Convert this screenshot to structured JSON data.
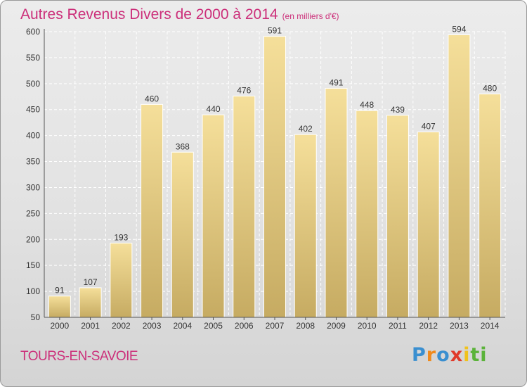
{
  "title": "Autres Revenus Divers de 2000 à 2014",
  "subtitle": "(en milliers d'€)",
  "location": "TOURS-EN-SAVOIE",
  "brand": [
    "P",
    "r",
    "o",
    "x",
    "i",
    "ti"
  ],
  "colors": {
    "title": "#cc2f7a",
    "bar_light": "#f5df9a",
    "bar_dark": "#c6ab62"
  },
  "chart_data": {
    "type": "bar",
    "categories": [
      "2000",
      "2001",
      "2002",
      "2003",
      "2004",
      "2005",
      "2006",
      "2007",
      "2008",
      "2009",
      "2010",
      "2011",
      "2012",
      "2013",
      "2014"
    ],
    "values": [
      91,
      107,
      193,
      460,
      368,
      440,
      476,
      591,
      402,
      491,
      448,
      439,
      407,
      594,
      480
    ],
    "ylim": [
      50,
      600
    ],
    "yticks": [
      50,
      100,
      150,
      200,
      250,
      300,
      350,
      400,
      450,
      500,
      550,
      600
    ],
    "grid": true,
    "xlabel": "",
    "ylabel": ""
  }
}
